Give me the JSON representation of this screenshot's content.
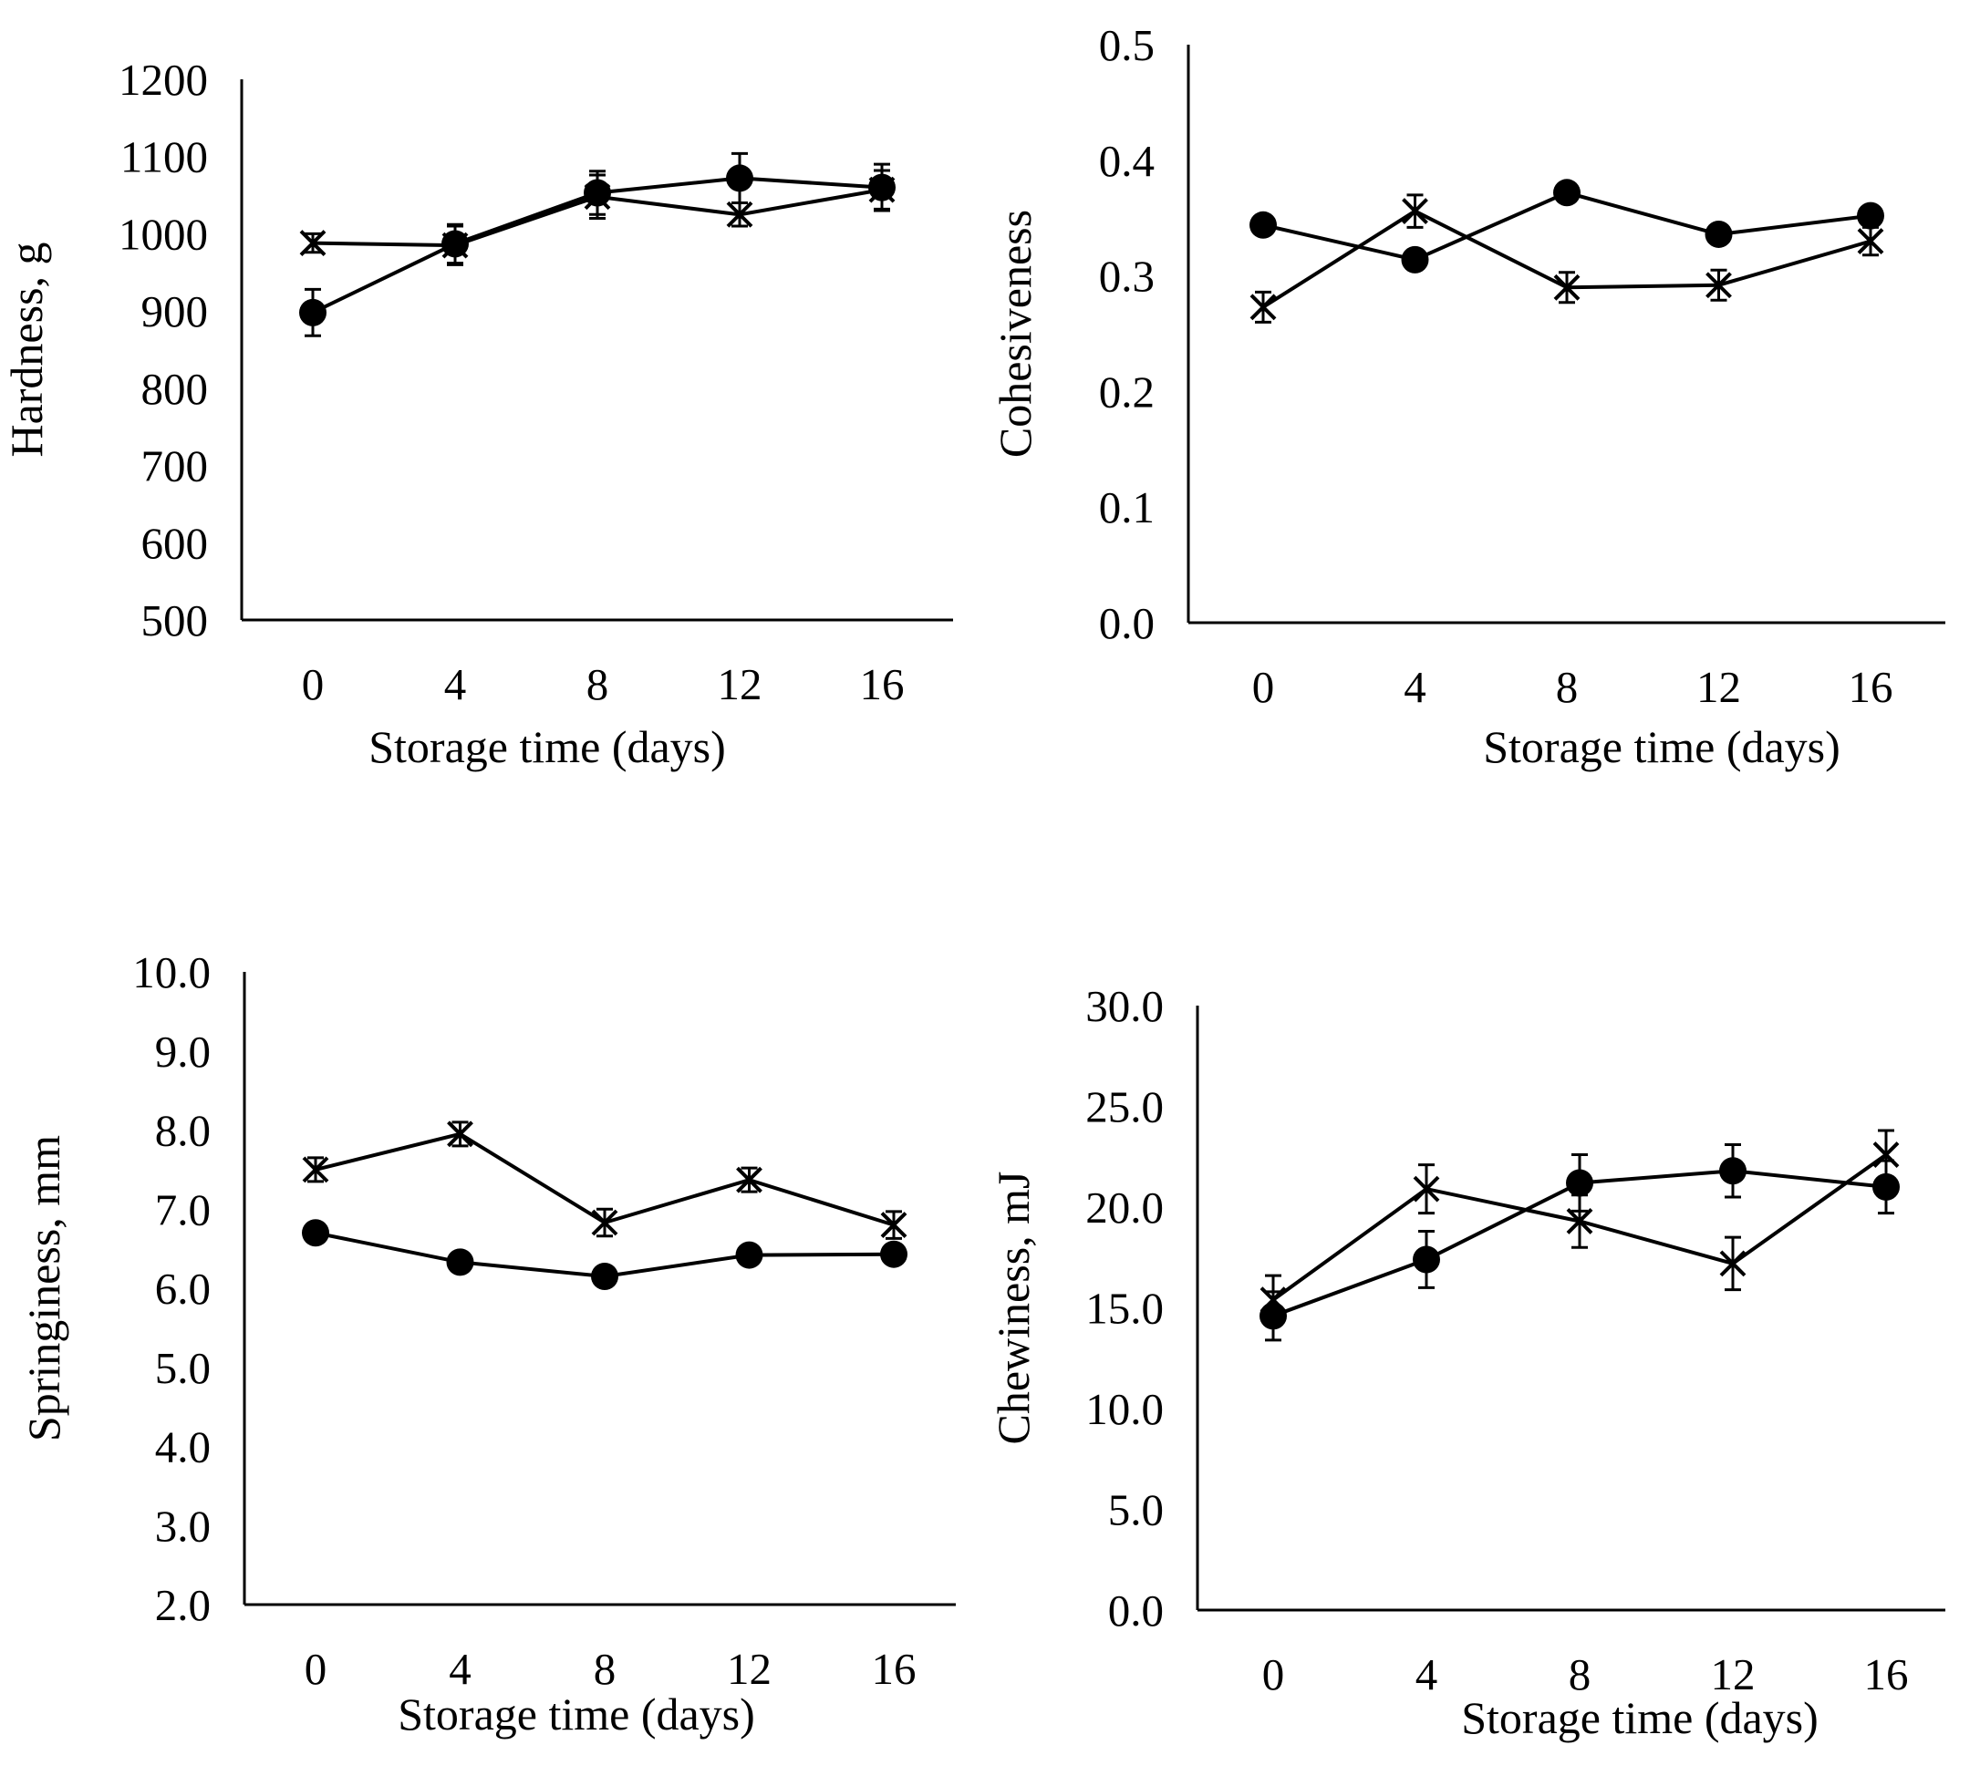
{
  "chart_data": [
    {
      "type": "line",
      "title": "",
      "xlabel": "Storage time (days)",
      "ylabel": "Hardness, g",
      "categories": [
        "0",
        "4",
        "8",
        "12",
        "16"
      ],
      "yticks": [
        "500",
        "600",
        "700",
        "800",
        "900",
        "1000",
        "1100",
        "1200"
      ],
      "ylim": [
        500,
        1200
      ],
      "grid": false,
      "legend": "none",
      "series": [
        {
          "name": "circle",
          "marker": "circle",
          "values": [
            898,
            987,
            1053,
            1072,
            1060
          ],
          "errors": [
            30,
            25,
            28,
            32,
            30
          ]
        },
        {
          "name": "cross",
          "marker": "cross",
          "values": [
            988,
            985,
            1048,
            1025,
            1057
          ],
          "errors": [
            12,
            25,
            28,
            15,
            25
          ]
        }
      ]
    },
    {
      "type": "line",
      "title": "",
      "xlabel": "Storage time (days)",
      "ylabel": "Cohesiveness",
      "categories": [
        "0",
        "4",
        "8",
        "12",
        "16"
      ],
      "yticks": [
        "0.0",
        "0.1",
        "0.2",
        "0.3",
        "0.4",
        "0.5"
      ],
      "ylim": [
        0,
        0.5
      ],
      "grid": false,
      "legend": "none",
      "series": [
        {
          "name": "circle",
          "marker": "circle",
          "values": [
            0.344,
            0.314,
            0.372,
            0.336,
            0.352
          ],
          "errors": [
            0.005,
            0.006,
            0.007,
            0.006,
            0.005
          ]
        },
        {
          "name": "cross",
          "marker": "cross",
          "values": [
            0.273,
            0.356,
            0.29,
            0.292,
            0.33
          ],
          "errors": [
            0.013,
            0.014,
            0.013,
            0.013,
            0.012
          ]
        }
      ]
    },
    {
      "type": "line",
      "title": "",
      "xlabel": "Storage time (days)",
      "ylabel": "Springiness, mm",
      "categories": [
        "0",
        "4",
        "8",
        "12",
        "16"
      ],
      "yticks": [
        "2.0",
        "3.0",
        "4.0",
        "5.0",
        "6.0",
        "7.0",
        "8.0",
        "9.0",
        "10.0"
      ],
      "ylim": [
        2,
        10
      ],
      "grid": false,
      "legend": "none",
      "series": [
        {
          "name": "circle",
          "marker": "circle",
          "values": [
            6.7,
            6.33,
            6.15,
            6.42,
            6.43
          ],
          "errors": [
            0.05,
            0.05,
            0.05,
            0.05,
            0.05
          ]
        },
        {
          "name": "cross",
          "marker": "cross",
          "values": [
            7.5,
            7.95,
            6.83,
            7.37,
            6.8
          ],
          "errors": [
            0.15,
            0.15,
            0.17,
            0.15,
            0.17
          ]
        }
      ]
    },
    {
      "type": "line",
      "title": "",
      "xlabel": "Storage time (days)",
      "ylabel": "Chewiness, mJ",
      "categories": [
        "0",
        "4",
        "8",
        "12",
        "16"
      ],
      "yticks": [
        "0.0",
        "5.0",
        "10.0",
        "15.0",
        "20.0",
        "25.0",
        "30.0"
      ],
      "ylim": [
        0,
        30
      ],
      "grid": false,
      "legend": "none",
      "series": [
        {
          "name": "circle",
          "marker": "circle",
          "values": [
            14.6,
            17.4,
            21.2,
            21.8,
            21.0
          ],
          "errors": [
            1.2,
            1.4,
            1.4,
            1.3,
            1.3
          ]
        },
        {
          "name": "cross",
          "marker": "cross",
          "values": [
            15.4,
            20.9,
            19.3,
            17.2,
            22.6
          ],
          "errors": [
            1.2,
            1.2,
            1.3,
            1.3,
            1.2
          ]
        }
      ]
    }
  ]
}
